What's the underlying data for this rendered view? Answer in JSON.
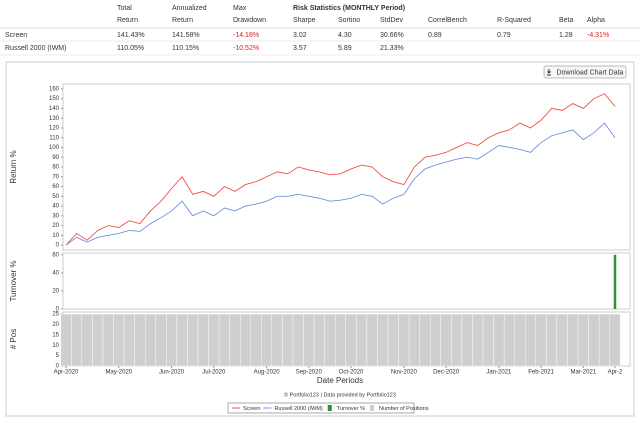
{
  "table": {
    "header_top": [
      "Total",
      "Annualized",
      "Max",
      "Risk Statistics (MONTHLY Period)"
    ],
    "header": [
      "Return",
      "Return",
      "Drawdown",
      "Sharpe",
      "Sortino",
      "StdDev",
      "CorrelBench",
      "R-Squared",
      "Beta",
      "Alpha"
    ],
    "rows": [
      [
        "Screen",
        "141.43%",
        "141.58%",
        "-14.18%",
        "3.02",
        "4.30",
        "30.66%",
        "0.89",
        "0.79",
        "1.28",
        "-4.31%"
      ],
      [
        "Russell 2000 (IWM)",
        "110.05%",
        "110.15%",
        "-10.52%",
        "3.57",
        "5.89",
        "21.33%"
      ]
    ]
  },
  "download_button": "Download Chart Data",
  "credit": "© Portfolio123 | Data provided by Portfolio123",
  "chart_data": [
    {
      "type": "line",
      "y_label": "Return %",
      "ylim": [
        -5,
        165
      ],
      "yticks": [
        0,
        10,
        20,
        30,
        40,
        50,
        60,
        70,
        80,
        90,
        100,
        110,
        120,
        130,
        140,
        150,
        160
      ],
      "series": [
        {
          "name": "Screen",
          "color": "#f0504a",
          "values": [
            0,
            12,
            5,
            15,
            20,
            18,
            25,
            22,
            35,
            45,
            58,
            70,
            52,
            55,
            50,
            60,
            55,
            62,
            65,
            70,
            75,
            73,
            80,
            77,
            75,
            72,
            73,
            78,
            82,
            80,
            70,
            65,
            62,
            80,
            90,
            92,
            95,
            100,
            105,
            102,
            110,
            115,
            118,
            125,
            120,
            128,
            140,
            138,
            145,
            140,
            150,
            155,
            142
          ]
        },
        {
          "name": "Russell 2000 (IWM)",
          "color": "#7391dc",
          "values": [
            0,
            8,
            3,
            8,
            10,
            12,
            15,
            14,
            22,
            28,
            35,
            45,
            30,
            35,
            30,
            38,
            35,
            40,
            42,
            45,
            50,
            50,
            52,
            50,
            48,
            45,
            46,
            48,
            52,
            50,
            42,
            48,
            52,
            68,
            78,
            82,
            85,
            88,
            90,
            88,
            95,
            102,
            100,
            98,
            95,
            105,
            112,
            115,
            118,
            108,
            115,
            125,
            110
          ]
        }
      ]
    },
    {
      "type": "bar",
      "y_label": "Turnover %",
      "ylim": [
        0,
        62
      ],
      "yticks": [
        0,
        20,
        40,
        60
      ],
      "series": [
        {
          "name": "Turnover %",
          "color": "#2f8f3a",
          "values": [
            0,
            0,
            0,
            0,
            0,
            0,
            0,
            0,
            0,
            0,
            0,
            0,
            0,
            0,
            0,
            0,
            0,
            0,
            0,
            0,
            0,
            0,
            0,
            0,
            0,
            0,
            0,
            0,
            0,
            0,
            0,
            0,
            0,
            0,
            0,
            0,
            0,
            0,
            0,
            0,
            0,
            0,
            0,
            0,
            0,
            0,
            0,
            0,
            0,
            0,
            0,
            0,
            60
          ]
        }
      ]
    },
    {
      "type": "bar",
      "y_label": "# Pos",
      "x_label": "Date Periods",
      "ylim": [
        0,
        26
      ],
      "yticks": [
        0,
        5,
        10,
        15,
        20,
        25
      ],
      "categories": [
        "Apr-2020",
        null,
        null,
        null,
        null,
        "May-2020",
        null,
        null,
        null,
        null,
        "Jun-2020",
        null,
        null,
        null,
        "Jul-2020",
        null,
        null,
        null,
        null,
        "Aug-2020",
        null,
        null,
        null,
        "Sep-2020",
        null,
        null,
        null,
        "Oct-2020",
        null,
        null,
        null,
        null,
        "Nov-2020",
        null,
        null,
        null,
        "Dec-2020",
        null,
        null,
        null,
        null,
        "Jan-2021",
        null,
        null,
        null,
        "Feb-2021",
        null,
        null,
        null,
        "Mar-2021",
        null,
        null,
        "Apr-2"
      ],
      "series": [
        {
          "name": "Number of Positions",
          "color": "#cfcfcf",
          "values": [
            25,
            25,
            25,
            25,
            25,
            25,
            25,
            25,
            25,
            25,
            25,
            25,
            25,
            25,
            25,
            25,
            25,
            25,
            25,
            25,
            25,
            25,
            25,
            25,
            25,
            25,
            25,
            25,
            25,
            25,
            25,
            25,
            25,
            25,
            25,
            25,
            25,
            25,
            25,
            25,
            25,
            25,
            25,
            25,
            25,
            25,
            25,
            25,
            25,
            25,
            25,
            25,
            25
          ]
        }
      ]
    }
  ]
}
